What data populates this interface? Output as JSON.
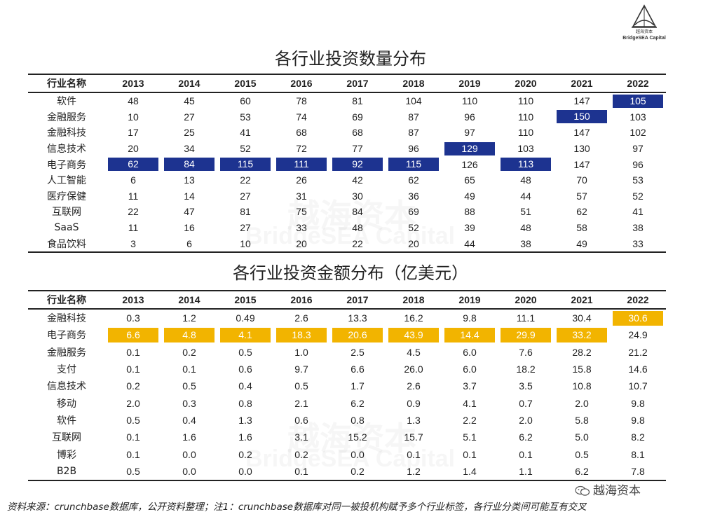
{
  "logo": {
    "name_cn": "越海资本",
    "name_en": "BridgeSEA Capital"
  },
  "watermark": {
    "cn": "越海资本",
    "en": "BridgeSEA Capital"
  },
  "colors": {
    "blue_highlight": "#1d3390",
    "gold_highlight": "#f2b400",
    "text": "#222222"
  },
  "table1": {
    "title": "各行业投资数量分布",
    "header_name": "行业名称",
    "years": [
      "2013",
      "2014",
      "2015",
      "2016",
      "2017",
      "2018",
      "2019",
      "2020",
      "2021",
      "2022"
    ],
    "rows": [
      {
        "name": "软件",
        "values": [
          "48",
          "45",
          "60",
          "78",
          "81",
          "104",
          "110",
          "110",
          "147",
          "105"
        ]
      },
      {
        "name": "金融服务",
        "values": [
          "10",
          "27",
          "53",
          "74",
          "69",
          "87",
          "96",
          "110",
          "150",
          "103"
        ]
      },
      {
        "name": "金融科技",
        "values": [
          "17",
          "25",
          "41",
          "68",
          "68",
          "87",
          "97",
          "110",
          "147",
          "102"
        ]
      },
      {
        "name": "信息技术",
        "values": [
          "20",
          "34",
          "52",
          "72",
          "77",
          "96",
          "129",
          "103",
          "130",
          "97"
        ]
      },
      {
        "name": "电子商务",
        "values": [
          "62",
          "84",
          "115",
          "111",
          "92",
          "115",
          "126",
          "113",
          "147",
          "96"
        ]
      },
      {
        "name": "人工智能",
        "values": [
          "6",
          "13",
          "22",
          "26",
          "42",
          "62",
          "65",
          "48",
          "70",
          "53"
        ]
      },
      {
        "name": "医疗保健",
        "values": [
          "11",
          "14",
          "27",
          "31",
          "30",
          "36",
          "49",
          "44",
          "57",
          "52"
        ]
      },
      {
        "name": "互联网",
        "values": [
          "22",
          "47",
          "81",
          "75",
          "84",
          "69",
          "88",
          "51",
          "62",
          "41"
        ]
      },
      {
        "name": "SaaS",
        "values": [
          "11",
          "16",
          "27",
          "33",
          "48",
          "52",
          "39",
          "48",
          "58",
          "38"
        ]
      },
      {
        "name": "食品饮料",
        "values": [
          "3",
          "6",
          "10",
          "20",
          "22",
          "20",
          "44",
          "38",
          "49",
          "33"
        ]
      }
    ],
    "highlights": [
      [
        0,
        9
      ],
      [
        1,
        8
      ],
      [
        3,
        6
      ],
      [
        4,
        0
      ],
      [
        4,
        1
      ],
      [
        4,
        2
      ],
      [
        4,
        3
      ],
      [
        4,
        4
      ],
      [
        4,
        5
      ],
      [
        4,
        7
      ]
    ]
  },
  "table2": {
    "title": "各行业投资金额分布（亿美元）",
    "header_name": "行业名称",
    "years": [
      "2013",
      "2014",
      "2015",
      "2016",
      "2017",
      "2018",
      "2019",
      "2020",
      "2021",
      "2022"
    ],
    "rows": [
      {
        "name": "金融科技",
        "values": [
          "0.3",
          "1.2",
          "0.49",
          "2.6",
          "13.3",
          "16.2",
          "9.8",
          "11.1",
          "30.4",
          "30.6"
        ]
      },
      {
        "name": "电子商务",
        "values": [
          "6.6",
          "4.8",
          "4.1",
          "18.3",
          "20.6",
          "43.9",
          "14.4",
          "29.9",
          "33.2",
          "24.9"
        ]
      },
      {
        "name": "金融服务",
        "values": [
          "0.1",
          "0.2",
          "0.5",
          "1.0",
          "2.5",
          "4.5",
          "6.0",
          "7.6",
          "28.2",
          "21.2"
        ]
      },
      {
        "name": "支付",
        "values": [
          "0.1",
          "0.1",
          "0.6",
          "9.7",
          "6.6",
          "26.0",
          "6.0",
          "18.2",
          "15.8",
          "14.6"
        ]
      },
      {
        "name": "信息技术",
        "values": [
          "0.2",
          "0.5",
          "0.4",
          "0.5",
          "1.7",
          "2.6",
          "3.7",
          "3.5",
          "10.8",
          "10.7"
        ]
      },
      {
        "name": "移动",
        "values": [
          "2.0",
          "0.3",
          "0.8",
          "2.1",
          "6.2",
          "0.9",
          "4.1",
          "0.7",
          "2.0",
          "9.8"
        ]
      },
      {
        "name": "软件",
        "values": [
          "0.5",
          "0.4",
          "1.3",
          "0.6",
          "0.8",
          "1.3",
          "2.2",
          "2.0",
          "5.8",
          "9.8"
        ]
      },
      {
        "name": "互联网",
        "values": [
          "0.1",
          "1.6",
          "1.6",
          "3.1",
          "15.2",
          "15.7",
          "5.1",
          "6.2",
          "5.0",
          "8.2"
        ]
      },
      {
        "name": "博彩",
        "values": [
          "0.1",
          "0.0",
          "0.2",
          "0.2",
          "0.0",
          "0.1",
          "0.1",
          "0.1",
          "0.5",
          "8.1"
        ]
      },
      {
        "name": "B2B",
        "values": [
          "0.5",
          "0.0",
          "0.0",
          "0.1",
          "0.2",
          "1.2",
          "1.4",
          "1.1",
          "6.2",
          "7.8"
        ]
      }
    ],
    "highlights": [
      [
        0,
        9
      ],
      [
        1,
        0
      ],
      [
        1,
        1
      ],
      [
        1,
        2
      ],
      [
        1,
        3
      ],
      [
        1,
        4
      ],
      [
        1,
        5
      ],
      [
        1,
        6
      ],
      [
        1,
        7
      ],
      [
        1,
        8
      ]
    ]
  },
  "source_note": "资料来源：crunchbase数据库，公开资料整理；注1：crunchbase数据库对同一被投机构赋予多个行业标签，各行业分类间可能互有交叉",
  "wechat_label": "越海资本"
}
